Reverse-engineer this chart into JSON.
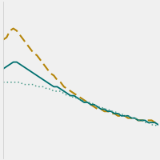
{
  "x": [
    0,
    1,
    2,
    3,
    4,
    5,
    6,
    7,
    8,
    9,
    10,
    11,
    12,
    13,
    14,
    15,
    16,
    17,
    18,
    19,
    20,
    21,
    22,
    23,
    24,
    25,
    26,
    27,
    28,
    29,
    30,
    31,
    32,
    33,
    34,
    35,
    36,
    37,
    38,
    39,
    40,
    41,
    42,
    43,
    44,
    45,
    46
  ],
  "line_dashed": [
    63,
    64,
    67,
    68,
    67,
    65,
    63,
    61,
    59,
    57,
    56,
    54,
    52,
    50,
    48,
    47,
    45,
    44,
    42,
    41,
    40,
    39,
    38,
    37,
    36,
    35,
    34,
    33,
    32,
    32,
    31,
    31,
    30,
    30,
    29,
    29,
    29,
    28,
    28,
    28,
    27,
    27,
    27,
    27,
    27,
    26,
    26
  ],
  "line_solid": [
    50,
    51,
    52,
    53,
    53,
    52,
    51,
    50,
    49,
    48,
    47,
    46,
    45,
    44,
    43,
    42,
    42,
    41,
    40,
    39,
    38,
    38,
    37,
    36,
    35,
    35,
    34,
    34,
    33,
    32,
    32,
    31,
    31,
    30,
    30,
    29,
    29,
    29,
    28,
    28,
    27,
    27,
    27,
    26,
    26,
    26,
    25
  ],
  "line_dotted": [
    44,
    44,
    44,
    44,
    44,
    44,
    43,
    43,
    43,
    43,
    42,
    42,
    42,
    41,
    41,
    40,
    40,
    40,
    39,
    38,
    38,
    37,
    37,
    36,
    36,
    35,
    35,
    34,
    33,
    33,
    32,
    32,
    31,
    31,
    30,
    30,
    29,
    29,
    28,
    28,
    27,
    27,
    26,
    26,
    25,
    25,
    24
  ],
  "color_dashed": "#b5850a",
  "color_solid": "#007070",
  "color_dotted": "#4a9a8a",
  "background_color": "#f0f0f0",
  "grid_color": "#d0d0d0",
  "ylim": [
    10,
    80
  ],
  "xlim": [
    0,
    46
  ],
  "figsize": [
    2.0,
    2.0
  ],
  "dpi": 100,
  "linewidth_dashed": 1.5,
  "linewidth_solid": 1.3,
  "linewidth_dotted": 1.1
}
